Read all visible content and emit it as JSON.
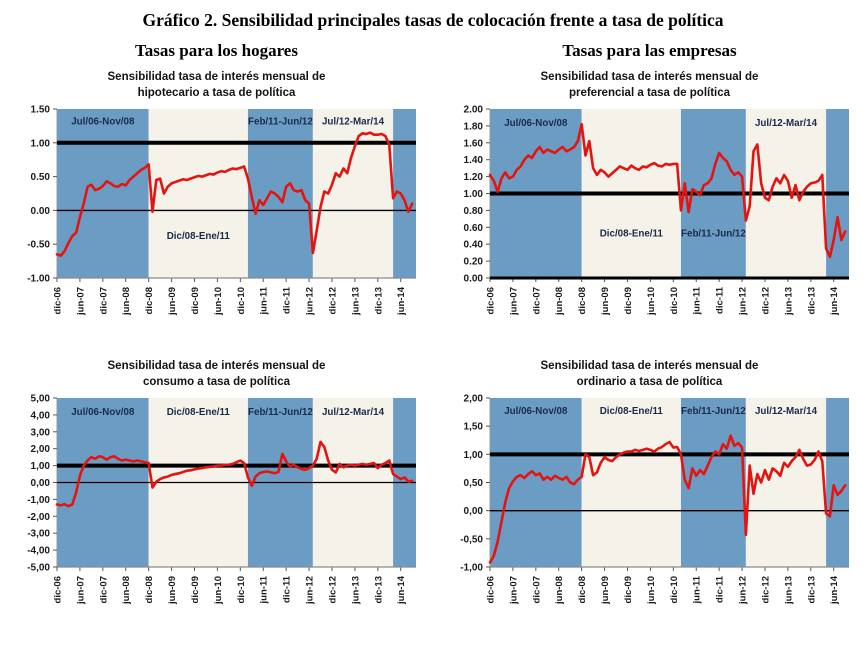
{
  "page_title": "Gráfico 2. Sensibilidad principales tasas de colocación frente a tasa de política",
  "column_headers": {
    "left": "Tasas para los hogares",
    "right": "Tasas para las empresas"
  },
  "colors": {
    "band_blue": "#6B9DC4",
    "band_ivory": "#F4F2E9",
    "line_red": "#E41511",
    "ref_black": "#000000",
    "band_label_text": "#1B2A4A",
    "axis_text": "#1A1A1A",
    "axis_line": "#9A9A9A"
  },
  "x_axis": {
    "labels": [
      "dic-06",
      "jun-07",
      "dic-07",
      "jun-08",
      "dic-08",
      "jun-09",
      "dic-09",
      "jun-10",
      "dic-10",
      "jun-11",
      "dic-11",
      "jun-12",
      "dic-12",
      "jun-13",
      "dic-13",
      "jun-14"
    ],
    "tick_months": [
      0,
      6,
      12,
      18,
      24,
      30,
      36,
      42,
      48,
      54,
      60,
      66,
      72,
      78,
      84,
      90
    ],
    "total_months": 94
  },
  "chart_data": [
    {
      "type": "line",
      "id": "hipotecario",
      "title": "Sensibilidad tasa de interés  mensual de\nhipotecario a tasa de política",
      "ylim": [
        -1.0,
        1.5
      ],
      "y_tick_labels": [
        "1.50",
        "1.00",
        "0.50",
        "0.00",
        "-0.50",
        "-1.00"
      ],
      "y_tick_values": [
        1.5,
        1.0,
        0.5,
        0.0,
        -0.5,
        -1.0
      ],
      "ref_lines": [
        {
          "value": 1.0,
          "width": 4
        },
        {
          "value": 0.0,
          "width": 1.4
        }
      ],
      "bottom_axis": "thin",
      "bands": [
        {
          "label": "Jul/06-Nov/08",
          "from": 0,
          "to": 24,
          "blue": true,
          "label_y": 1.27
        },
        {
          "label": "Dic/08-Ene/11",
          "from": 24,
          "to": 50,
          "blue": false,
          "label_y": -0.42
        },
        {
          "label": "Feb/11-Jun/12",
          "from": 50,
          "to": 67,
          "blue": true,
          "label_y": 1.27
        },
        {
          "label": "Jul/12-Mar/14",
          "from": 67,
          "to": 88,
          "blue": false,
          "label_y": 1.27
        },
        {
          "label": "",
          "from": 88,
          "to": 94,
          "blue": true,
          "label_y": 0
        }
      ],
      "series_name": "sensibilidad hipotecario",
      "values": [
        -0.65,
        -0.67,
        -0.6,
        -0.48,
        -0.38,
        -0.33,
        -0.1,
        0.1,
        0.35,
        0.38,
        0.3,
        0.32,
        0.36,
        0.43,
        0.4,
        0.36,
        0.35,
        0.39,
        0.37,
        0.45,
        0.5,
        0.55,
        0.6,
        0.63,
        0.68,
        -0.02,
        0.45,
        0.47,
        0.25,
        0.35,
        0.4,
        0.42,
        0.44,
        0.46,
        0.45,
        0.47,
        0.49,
        0.51,
        0.5,
        0.52,
        0.54,
        0.53,
        0.56,
        0.58,
        0.57,
        0.6,
        0.62,
        0.61,
        0.63,
        0.65,
        0.47,
        0.2,
        -0.05,
        0.15,
        0.08,
        0.18,
        0.28,
        0.25,
        0.2,
        0.12,
        0.35,
        0.4,
        0.3,
        0.28,
        0.3,
        0.15,
        0.1,
        -0.63,
        -0.3,
        0.05,
        0.28,
        0.25,
        0.38,
        0.55,
        0.5,
        0.62,
        0.55,
        0.78,
        0.95,
        1.1,
        1.14,
        1.13,
        1.15,
        1.12,
        1.12,
        1.13,
        1.1,
        0.97,
        0.18,
        0.28,
        0.25,
        0.15,
        -0.02,
        0.1
      ]
    },
    {
      "type": "line",
      "id": "preferencial",
      "title": "Sensibilidad tasa de interés  mensual de\npreferencial a tasa de política",
      "ylim": [
        0.0,
        2.0
      ],
      "y_tick_labels": [
        "2.00",
        "1.80",
        "1.60",
        "1.40",
        "1.20",
        "1.00",
        "0.80",
        "0.60",
        "0.40",
        "0.20",
        "0.00"
      ],
      "y_tick_values": [
        2.0,
        1.8,
        1.6,
        1.4,
        1.2,
        1.0,
        0.8,
        0.6,
        0.4,
        0.2,
        0.0
      ],
      "ref_lines": [
        {
          "value": 1.0,
          "width": 4
        }
      ],
      "bottom_axis": "thick",
      "bands": [
        {
          "label": "Jul/06-Nov/08",
          "from": 0,
          "to": 24,
          "blue": true,
          "label_y": 1.8
        },
        {
          "label": "Dic/08-Ene/11",
          "from": 24,
          "to": 50,
          "blue": false,
          "label_y": 0.49
        },
        {
          "label": "Feb/11-Jun/12",
          "from": 50,
          "to": 67,
          "blue": true,
          "label_y": 0.49
        },
        {
          "label": "Jul/12-Mar/14",
          "from": 67,
          "to": 88,
          "blue": false,
          "label_y": 1.8
        },
        {
          "label": "",
          "from": 88,
          "to": 94,
          "blue": true,
          "label_y": 0
        }
      ],
      "series_name": "sensibilidad preferencial",
      "values": [
        1.22,
        1.15,
        1.02,
        1.18,
        1.25,
        1.18,
        1.2,
        1.28,
        1.32,
        1.4,
        1.45,
        1.42,
        1.5,
        1.55,
        1.48,
        1.52,
        1.5,
        1.48,
        1.52,
        1.55,
        1.5,
        1.52,
        1.55,
        1.62,
        1.82,
        1.45,
        1.62,
        1.3,
        1.22,
        1.28,
        1.25,
        1.2,
        1.24,
        1.28,
        1.32,
        1.3,
        1.28,
        1.33,
        1.3,
        1.28,
        1.32,
        1.31,
        1.34,
        1.36,
        1.33,
        1.32,
        1.35,
        1.34,
        1.35,
        1.35,
        0.8,
        1.12,
        0.78,
        1.05,
        1.02,
        0.98,
        1.1,
        1.12,
        1.18,
        1.35,
        1.48,
        1.42,
        1.38,
        1.28,
        1.22,
        1.25,
        1.2,
        0.68,
        0.85,
        1.5,
        1.58,
        1.12,
        0.95,
        0.92,
        1.08,
        1.18,
        1.12,
        1.22,
        1.15,
        0.95,
        1.1,
        0.92,
        1.02,
        1.08,
        1.12,
        1.13,
        1.15,
        1.22,
        0.35,
        0.25,
        0.45,
        0.72,
        0.45,
        0.55
      ]
    },
    {
      "type": "line",
      "id": "consumo",
      "title": "Sensibilidad tasa de interés  mensual de\nconsumo a tasa de política",
      "ylim": [
        -5.0,
        5.0
      ],
      "y_tick_labels": [
        "5,00",
        "4,00",
        "3,00",
        "2,00",
        "1,00",
        "0,00",
        "-1,00",
        "-2,00",
        "-3,00",
        "-4,00",
        "-5,00"
      ],
      "y_tick_values": [
        5,
        4,
        3,
        2,
        1,
        0,
        -1,
        -2,
        -3,
        -4,
        -5
      ],
      "ref_lines": [
        {
          "value": 1.0,
          "width": 4
        },
        {
          "value": 0.0,
          "width": 1.2
        }
      ],
      "bottom_axis": "thin",
      "bands": [
        {
          "label": "Jul/06-Nov/08",
          "from": 0,
          "to": 24,
          "blue": true,
          "label_y": 4.0
        },
        {
          "label": "Dic/08-Ene/11",
          "from": 24,
          "to": 50,
          "blue": false,
          "label_y": 4.0
        },
        {
          "label": "Feb/11-Jun/12",
          "from": 50,
          "to": 67,
          "blue": true,
          "label_y": 4.0
        },
        {
          "label": "Jul/12-Mar/14",
          "from": 67,
          "to": 88,
          "blue": false,
          "label_y": 4.0
        },
        {
          "label": "",
          "from": 88,
          "to": 94,
          "blue": true,
          "label_y": 0
        }
      ],
      "series_name": "sensibilidad consumo",
      "values": [
        -1.3,
        -1.35,
        -1.28,
        -1.4,
        -1.3,
        -0.6,
        0.4,
        1.0,
        1.3,
        1.5,
        1.4,
        1.55,
        1.5,
        1.35,
        1.5,
        1.55,
        1.4,
        1.3,
        1.35,
        1.3,
        1.25,
        1.3,
        1.25,
        1.2,
        1.15,
        -0.3,
        0.05,
        0.2,
        0.3,
        0.35,
        0.45,
        0.5,
        0.55,
        0.62,
        0.7,
        0.72,
        0.78,
        0.82,
        0.85,
        0.9,
        0.92,
        0.95,
        1.0,
        1.0,
        1.05,
        1.05,
        1.1,
        1.2,
        1.3,
        1.15,
        0.3,
        -0.2,
        0.35,
        0.55,
        0.62,
        0.65,
        0.6,
        0.55,
        0.62,
        1.7,
        1.25,
        0.95,
        1.05,
        0.9,
        0.8,
        0.75,
        0.85,
        1.0,
        1.4,
        2.4,
        2.1,
        1.3,
        0.75,
        0.6,
        1.1,
        0.9,
        1.0,
        1.05,
        1.0,
        1.05,
        1.1,
        1.05,
        1.1,
        1.15,
        0.85,
        1.05,
        1.15,
        1.3,
        0.5,
        0.35,
        0.2,
        0.3,
        0.05,
        0.1
      ]
    },
    {
      "type": "line",
      "id": "ordinario",
      "title": "Sensibilidad tasa de interés  mensual de\nordinario a tasa de política",
      "ylim": [
        -1.0,
        2.0
      ],
      "y_tick_labels": [
        "2,00",
        "1,50",
        "1,00",
        "0,50",
        "0,00",
        "-0,50",
        "-1,00"
      ],
      "y_tick_values": [
        2.0,
        1.5,
        1.0,
        0.5,
        0.0,
        -0.5,
        -1.0
      ],
      "ref_lines": [
        {
          "value": 1.0,
          "width": 4
        },
        {
          "value": 0.0,
          "width": 1.4
        }
      ],
      "bottom_axis": "thin",
      "bands": [
        {
          "label": "Jul/06-Nov/08",
          "from": 0,
          "to": 24,
          "blue": true,
          "label_y": 1.72
        },
        {
          "label": "Dic/08-Ene/11",
          "from": 24,
          "to": 50,
          "blue": false,
          "label_y": 1.72
        },
        {
          "label": "Feb/11-Jun/12",
          "from": 50,
          "to": 67,
          "blue": true,
          "label_y": 1.72
        },
        {
          "label": "Jul/12-Mar/14",
          "from": 67,
          "to": 88,
          "blue": false,
          "label_y": 1.72
        },
        {
          "label": "",
          "from": 88,
          "to": 94,
          "blue": true,
          "label_y": 0
        }
      ],
      "series_name": "sensibilidad ordinario",
      "values": [
        -0.92,
        -0.8,
        -0.55,
        -0.2,
        0.15,
        0.4,
        0.52,
        0.6,
        0.63,
        0.58,
        0.65,
        0.7,
        0.63,
        0.66,
        0.55,
        0.6,
        0.55,
        0.62,
        0.58,
        0.55,
        0.6,
        0.5,
        0.47,
        0.55,
        0.6,
        1.0,
        0.95,
        0.63,
        0.68,
        0.85,
        0.95,
        0.9,
        0.88,
        0.95,
        1.0,
        1.03,
        1.05,
        1.05,
        1.08,
        1.06,
        1.08,
        1.1,
        1.08,
        1.05,
        1.1,
        1.13,
        1.18,
        1.22,
        1.12,
        1.13,
        1.0,
        0.55,
        0.4,
        0.75,
        0.62,
        0.72,
        0.65,
        0.8,
        0.95,
        1.05,
        1.0,
        1.18,
        1.1,
        1.33,
        1.15,
        1.2,
        1.12,
        -0.43,
        0.8,
        0.3,
        0.65,
        0.5,
        0.72,
        0.55,
        0.75,
        0.7,
        0.62,
        0.85,
        0.78,
        0.88,
        0.95,
        1.08,
        0.92,
        0.8,
        0.82,
        0.9,
        1.05,
        0.88,
        -0.05,
        -0.1,
        0.45,
        0.28,
        0.35,
        0.45
      ]
    }
  ]
}
